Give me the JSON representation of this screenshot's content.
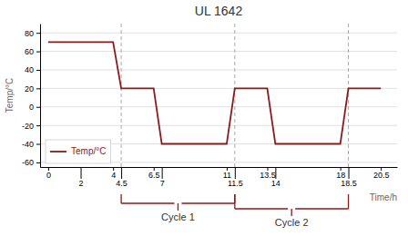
{
  "chart_data": {
    "type": "line",
    "title": "UL 1642",
    "x_label": "Time/h",
    "y_label": "Temp/°C",
    "x": [
      0,
      4,
      4.5,
      6.5,
      7,
      11,
      11.5,
      13.5,
      14,
      18,
      18.5,
      20.5
    ],
    "series": [
      {
        "name": "Temp/°C",
        "color": "#8B1A1A",
        "values": [
          70,
          70,
          20,
          20,
          -40,
          -40,
          20,
          20,
          -40,
          -40,
          20,
          20
        ]
      }
    ],
    "xlim": [
      -0.5,
      21.5
    ],
    "ylim": [
      -65,
      90
    ],
    "xticks": [
      0,
      2,
      4,
      4.5,
      6.5,
      7,
      11,
      11.5,
      13.5,
      14,
      18,
      18.5,
      20.5
    ],
    "yticks": [
      -60,
      -40,
      -20,
      0,
      20,
      40,
      60,
      80
    ],
    "grid": true,
    "legend": "lower left",
    "vlines": [
      4.5,
      11.5,
      18.5
    ],
    "annotations": [
      {
        "text": "Cycle 1",
        "x": [
          4.5,
          11.5
        ],
        "color": "#8B1A1A"
      },
      {
        "text": "Cycle 2",
        "x": [
          11.5,
          18.5
        ],
        "color": "#8B1A1A"
      }
    ]
  }
}
